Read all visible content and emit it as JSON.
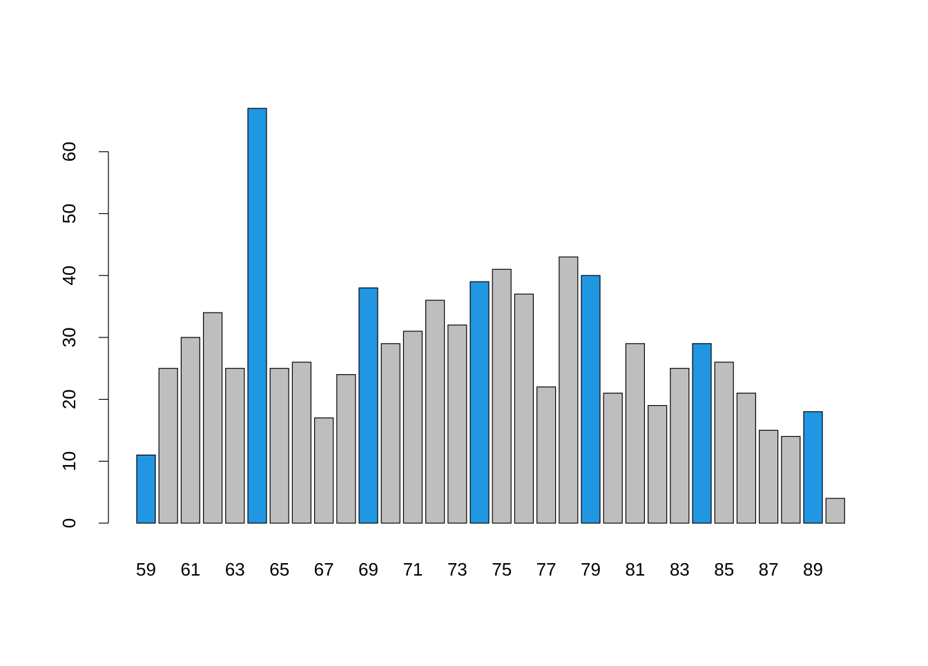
{
  "chart_data": {
    "type": "bar",
    "categories": [
      "59",
      "60",
      "61",
      "62",
      "63",
      "64",
      "65",
      "66",
      "67",
      "68",
      "69",
      "70",
      "71",
      "72",
      "73",
      "74",
      "75",
      "76",
      "77",
      "78",
      "79",
      "80",
      "81",
      "82",
      "83",
      "84",
      "85",
      "86",
      "87",
      "88",
      "89",
      "90"
    ],
    "values": [
      11,
      25,
      30,
      34,
      25,
      67,
      25,
      26,
      17,
      24,
      38,
      29,
      31,
      36,
      32,
      39,
      41,
      37,
      22,
      43,
      40,
      21,
      29,
      19,
      25,
      29,
      26,
      21,
      15,
      14,
      18,
      4
    ],
    "highlighted_categories": [
      "59",
      "64",
      "69",
      "74",
      "79",
      "84",
      "89"
    ],
    "x_tick_labels": [
      "59",
      "61",
      "63",
      "65",
      "67",
      "69",
      "71",
      "73",
      "75",
      "77",
      "79",
      "81",
      "83",
      "85",
      "87",
      "89"
    ],
    "y_ticks": [
      0,
      10,
      20,
      30,
      40,
      50,
      60
    ],
    "ylim": [
      0,
      67
    ],
    "title": "",
    "xlabel": "",
    "ylabel": "",
    "grid": false,
    "colors": {
      "highlight": "#2196E3",
      "default": "#BEBEBE",
      "border": "#000000"
    }
  }
}
